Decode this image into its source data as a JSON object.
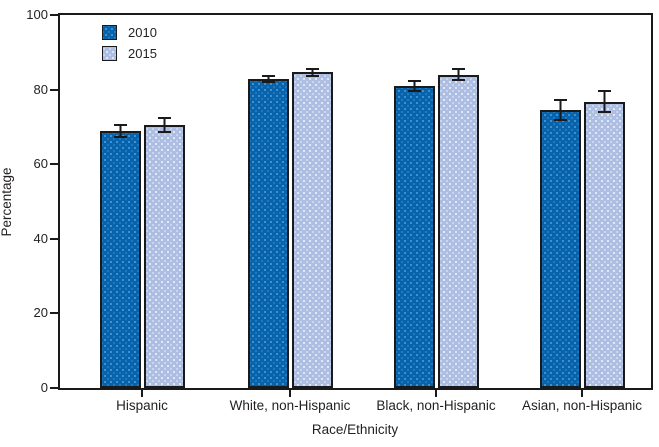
{
  "chart_data": {
    "type": "bar",
    "title": "",
    "xlabel": "Race/Ethnicity",
    "ylabel": "Percentage",
    "categories": [
      "Hispanic",
      "White, non-Hispanic",
      "Black, non-Hispanic",
      "Asian, non-Hispanic"
    ],
    "series": [
      {
        "name": "2010",
        "color": "#0663ac",
        "values": [
          68.9,
          82.9,
          80.9,
          74.5
        ],
        "error_bars": [
          2.0,
          1.0,
          1.6,
          2.9
        ]
      },
      {
        "name": "2015",
        "color": "#aebde2",
        "values": [
          70.6,
          84.6,
          84.0,
          76.8
        ],
        "error_bars": [
          2.1,
          1.1,
          1.7,
          3.1
        ]
      }
    ],
    "ylim": [
      0,
      100
    ],
    "yticks": [
      0,
      20,
      40,
      60,
      80,
      100
    ],
    "ytick_labels": [
      "0",
      "20",
      "40",
      "60",
      "80",
      "100"
    ],
    "legend_position": "top-left-inside",
    "grid": false,
    "error_bars": true,
    "bar_outline_color": "#1a1a1a",
    "axis_color": "#1a1a1a",
    "text_color": "#231f20"
  }
}
